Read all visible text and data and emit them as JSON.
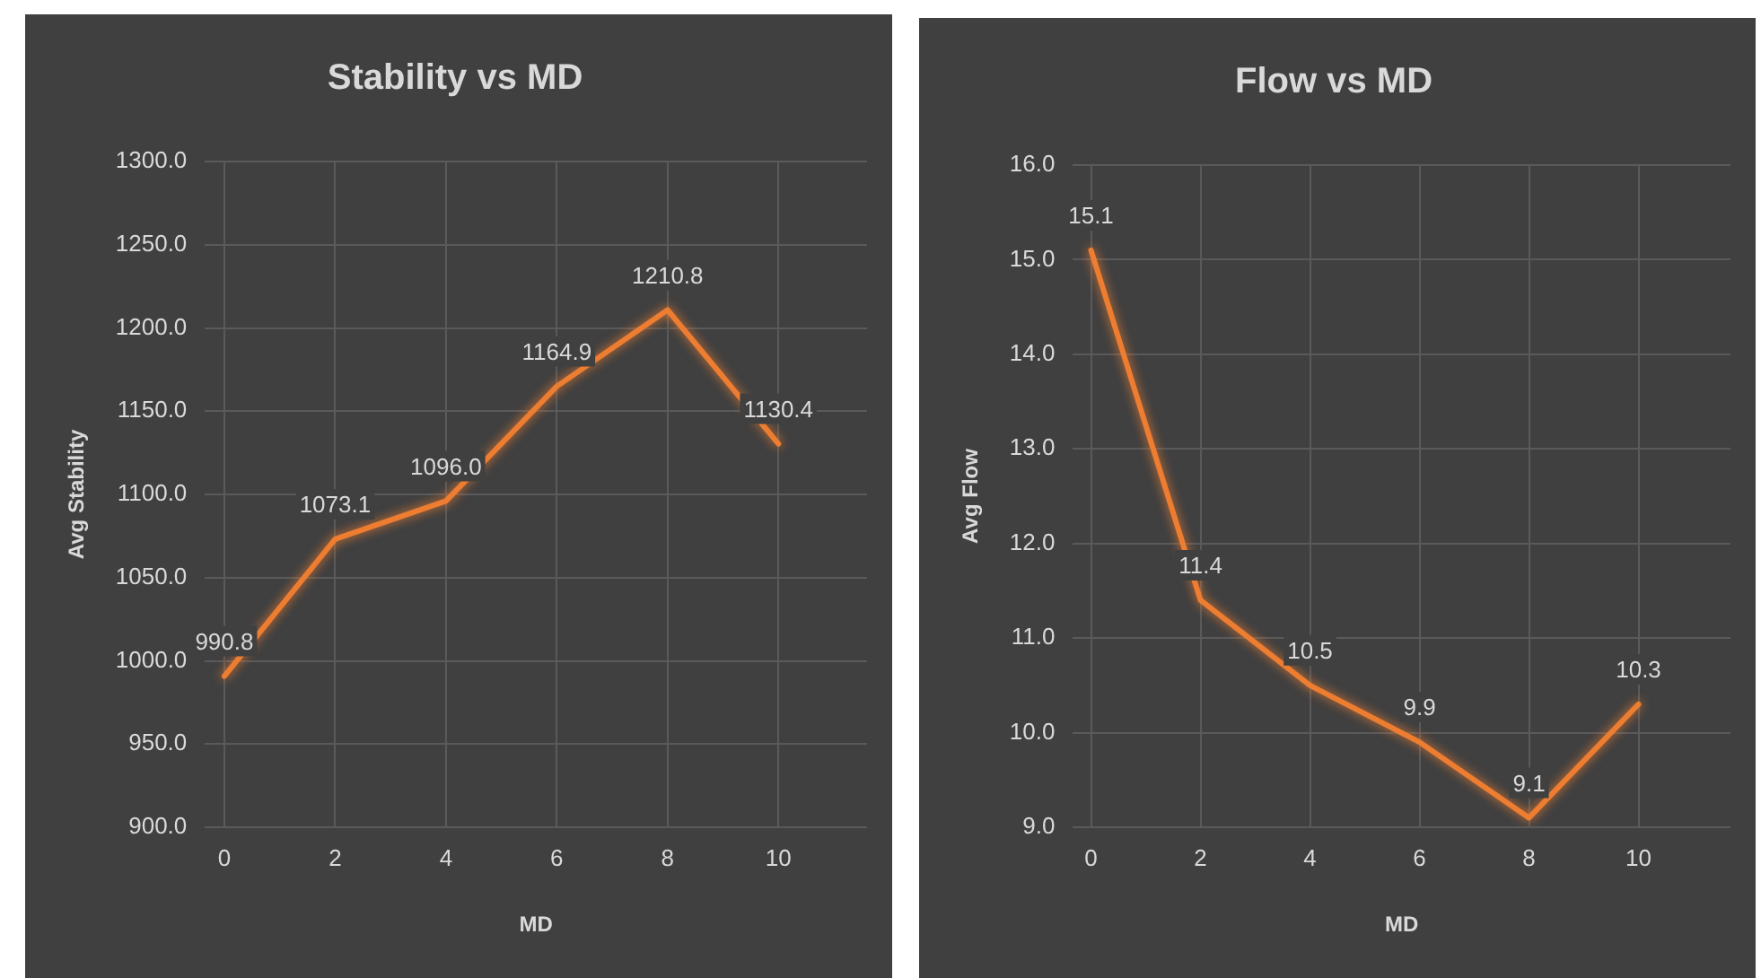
{
  "chart_data": [
    {
      "type": "line",
      "title": "Stability vs MD",
      "xlabel": "MD",
      "ylabel": "Avg Stability",
      "x": [
        0,
        2,
        4,
        6,
        8,
        10
      ],
      "series": [
        {
          "color": "#ed7d31",
          "values": [
            990.8,
            1073.1,
            1096.0,
            1164.9,
            1210.8,
            1130.4
          ],
          "value_labels": [
            "990.8",
            "1073.1",
            "1096.0",
            "1164.9",
            "1210.8",
            "1130.4"
          ]
        }
      ],
      "xlim": [
        -0.35,
        11.6
      ],
      "xticks": [
        0,
        2,
        4,
        6,
        8,
        10
      ],
      "ylim": [
        900,
        1300
      ],
      "yticks": [
        {
          "value": 900,
          "label": "900.0"
        },
        {
          "value": 950,
          "label": "950.0"
        },
        {
          "value": 1000,
          "label": "1000.0"
        },
        {
          "value": 1050,
          "label": "1050.0"
        },
        {
          "value": 1100,
          "label": "1100.0"
        },
        {
          "value": 1150,
          "label": "1150.0"
        },
        {
          "value": 1200,
          "label": "1200.0"
        },
        {
          "value": 1250,
          "label": "1250.0"
        },
        {
          "value": 1300,
          "label": "1300.0"
        }
      ],
      "grid": true,
      "legend": false,
      "marker": "none",
      "line_style": "solid"
    },
    {
      "type": "line",
      "title": "Flow vs MD",
      "xlabel": "MD",
      "ylabel": "Avg Flow",
      "x": [
        0,
        2,
        4,
        6,
        8,
        10
      ],
      "series": [
        {
          "color": "#ed7d31",
          "values": [
            15.1,
            11.4,
            10.5,
            9.9,
            9.1,
            10.3
          ],
          "value_labels": [
            "15.1",
            "11.4",
            "10.5",
            "9.9",
            "9.1",
            "10.3"
          ]
        }
      ],
      "xlim": [
        -0.33,
        11.68
      ],
      "xticks": [
        0,
        2,
        4,
        6,
        8,
        10
      ],
      "ylim": [
        9,
        16
      ],
      "yticks": [
        {
          "value": 9,
          "label": "9.0"
        },
        {
          "value": 10,
          "label": "10.0"
        },
        {
          "value": 11,
          "label": "11.0"
        },
        {
          "value": 12,
          "label": "12.0"
        },
        {
          "value": 13,
          "label": "13.0"
        },
        {
          "value": 14,
          "label": "14.0"
        },
        {
          "value": 15,
          "label": "15.0"
        },
        {
          "value": 16,
          "label": "16.0"
        }
      ],
      "grid": true,
      "legend": false,
      "marker": "none",
      "line_style": "solid"
    }
  ]
}
